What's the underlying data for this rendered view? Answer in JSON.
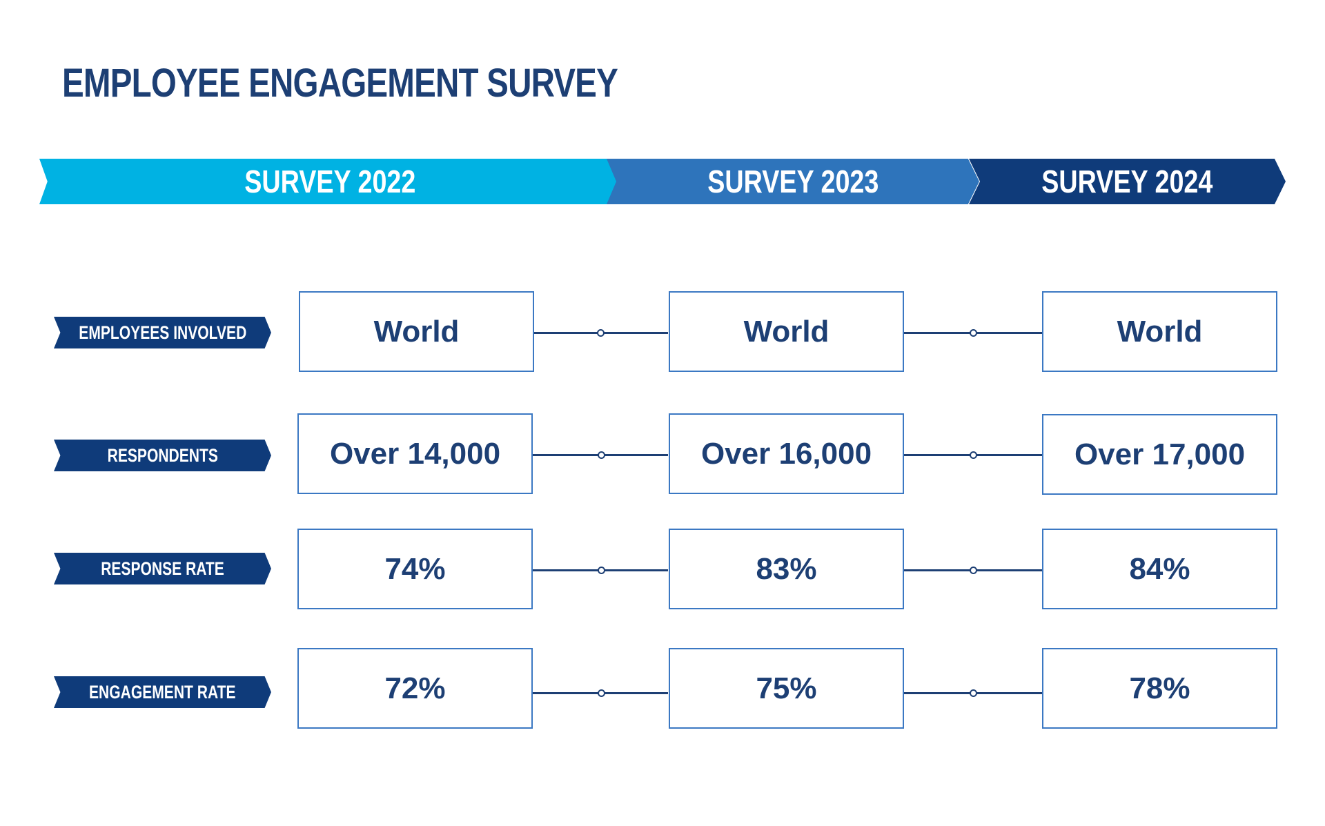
{
  "title": "EMPLOYEE ENGAGEMENT SURVEY",
  "surveys": [
    "SURVEY 2022",
    "SURVEY 2023",
    "SURVEY 2024"
  ],
  "rows": [
    {
      "label": "EMPLOYEES INVOLVED",
      "values": [
        "World",
        "World",
        "World"
      ]
    },
    {
      "label": "RESPONDENTS",
      "values": [
        "Over 14,000",
        "Over 16,000",
        "Over 17,000"
      ]
    },
    {
      "label": "RESPONSE RATE",
      "values": [
        "74%",
        "83%",
        "84%"
      ]
    },
    {
      "label": "ENGAGEMENT RATE",
      "values": [
        "72%",
        "75%",
        "78%"
      ]
    }
  ],
  "colors": {
    "survey_2022": "#00b2e3",
    "survey_2023": "#2e74bb",
    "survey_2024": "#0f3b7a",
    "text": "#1d3f74",
    "cell_border": "#3b78c3"
  }
}
